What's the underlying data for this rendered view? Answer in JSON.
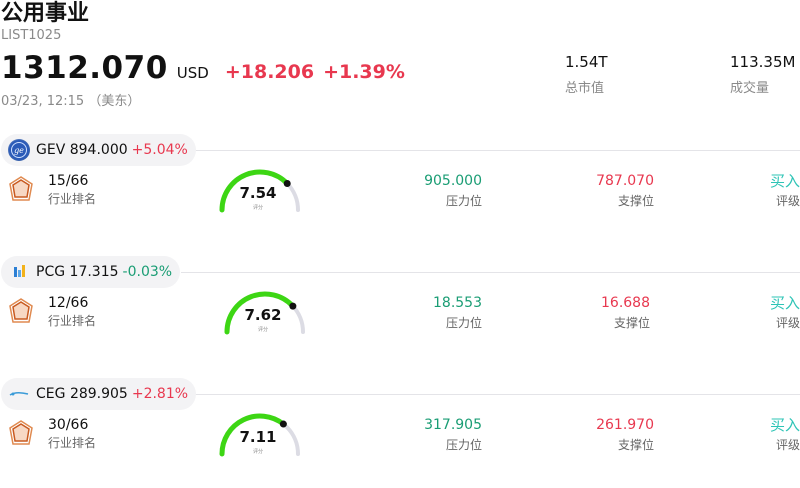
{
  "header": {
    "title": "公用事业",
    "code": "LIST1025",
    "price": "1312.070",
    "currency": "USD",
    "change": "+18.206",
    "change_pct": "+1.39%",
    "timestamp": "03/23, 12:15 （美东）"
  },
  "stats": {
    "market_cap": {
      "value": "1.54T",
      "label": "总市值"
    },
    "volume": {
      "value": "113.35M",
      "label": "成交量"
    }
  },
  "stocks": [
    {
      "symbol": "GEV",
      "price": "894.000",
      "change_pct": "+5.04%",
      "direction": "up",
      "logo_icon": "ge-logo-icon",
      "rank": "15/66",
      "rank_label": "行业排名",
      "score": "7.54",
      "score_label": "评分",
      "score_fraction": 0.754,
      "resistance": "905.000",
      "resistance_label": "压力位",
      "support": "787.070",
      "support_label": "支撑位",
      "rating": "买入",
      "rating_label": "评级"
    },
    {
      "symbol": "PCG",
      "price": "17.315",
      "change_pct": "-0.03%",
      "direction": "down",
      "logo_icon": "pge-logo-icon",
      "rank": "12/66",
      "rank_label": "行业排名",
      "score": "7.62",
      "score_label": "评分",
      "score_fraction": 0.762,
      "resistance": "18.553",
      "resistance_label": "压力位",
      "support": "16.688",
      "support_label": "支撑位",
      "rating": "买入",
      "rating_label": "评级"
    },
    {
      "symbol": "CEG",
      "price": "289.905",
      "change_pct": "+2.81%",
      "direction": "up",
      "logo_icon": "constellation-logo-icon",
      "rank": "30/66",
      "rank_label": "行业排名",
      "score": "7.11",
      "score_label": "评分",
      "score_fraction": 0.711,
      "resistance": "317.905",
      "resistance_label": "压力位",
      "support": "261.970",
      "support_label": "支撑位",
      "rating": "买入",
      "rating_label": "评级"
    }
  ],
  "colors": {
    "up": "#e8384f",
    "down": "#1a9d74",
    "gauge_fill": "#3dd614",
    "gauge_track": "#dcdce4",
    "rating": "#2ec4b6"
  }
}
